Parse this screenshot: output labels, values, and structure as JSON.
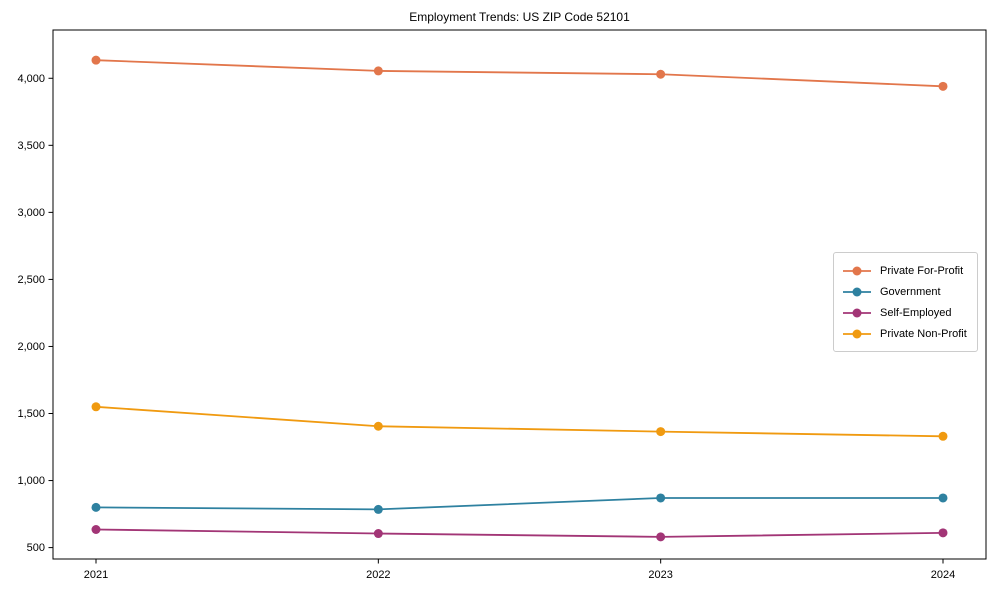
{
  "chart_data": {
    "type": "line",
    "title": "Employment Trends: US ZIP Code 52101",
    "xlabel": "",
    "ylabel": "",
    "categories": [
      "2021",
      "2022",
      "2023",
      "2024"
    ],
    "series": [
      {
        "name": "Private For-Profit",
        "color": "#E2764B",
        "values": [
          4135,
          4055,
          4030,
          3940
        ]
      },
      {
        "name": "Government",
        "color": "#2E81A0",
        "values": [
          800,
          785,
          870,
          870
        ]
      },
      {
        "name": "Self-Employed",
        "color": "#A23576",
        "values": [
          635,
          605,
          580,
          610
        ]
      },
      {
        "name": "Private Non-Profit",
        "color": "#F09A10",
        "values": [
          1550,
          1405,
          1365,
          1330
        ]
      }
    ],
    "yticks": [
      500,
      1000,
      1500,
      2000,
      2500,
      3000,
      3500,
      4000
    ],
    "ylim": [
      415,
      4360
    ],
    "grid": false,
    "legend_position": "center-right",
    "marker": "o",
    "axis_color": "#000000"
  }
}
